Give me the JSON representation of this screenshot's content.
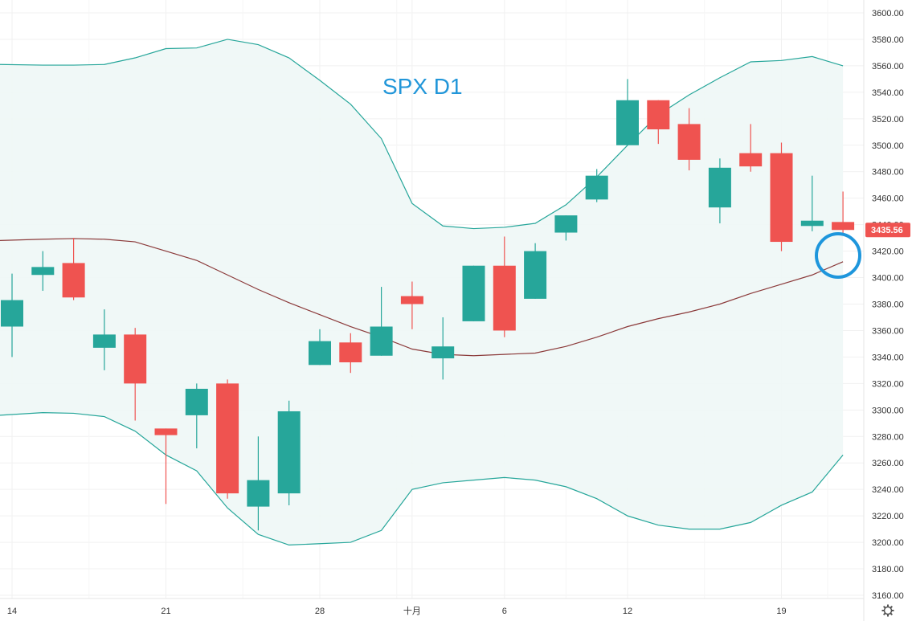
{
  "chart_data": {
    "type": "candlestick",
    "title": "SPX D1",
    "x_axis": {
      "labels": [
        {
          "text": "14",
          "index": 0
        },
        {
          "text": "21",
          "index": 5
        },
        {
          "text": "28",
          "index": 10
        },
        {
          "text": "十月",
          "index": 13
        },
        {
          "text": "6",
          "index": 16
        },
        {
          "text": "12",
          "index": 20
        },
        {
          "text": "19",
          "index": 25
        }
      ]
    },
    "y_axis": {
      "min": 3160,
      "max": 3600,
      "step": 20,
      "tick_labels": [
        "3600.00",
        "3580.00",
        "3560.00",
        "3540.00",
        "3520.00",
        "3500.00",
        "3480.00",
        "3460.00",
        "3440.00",
        "3420.00",
        "3400.00",
        "3380.00",
        "3360.00",
        "3340.00",
        "3320.00",
        "3300.00",
        "3280.00",
        "3260.00",
        "3240.00",
        "3220.00",
        "3200.00",
        "3180.00",
        "3160.00"
      ]
    },
    "last_price_label": "3435.56",
    "colors": {
      "up": "#26a69a",
      "down": "#ef5350",
      "middle_band": "#8b3a3a",
      "outer_band": "#26a69a",
      "band_fill": "#eef7f6",
      "highlight_circle": "#1e96dc",
      "title": "#2196d9"
    },
    "candles": [
      {
        "open": 3363,
        "high": 3403,
        "low": 3340,
        "close": 3383
      },
      {
        "open": 3402,
        "high": 3420,
        "low": 3390,
        "close": 3408
      },
      {
        "open": 3411,
        "high": 3430,
        "low": 3383,
        "close": 3385
      },
      {
        "open": 3347,
        "high": 3376,
        "low": 3330,
        "close": 3357
      },
      {
        "open": 3357,
        "high": 3362,
        "low": 3292,
        "close": 3320
      },
      {
        "open": 3286,
        "high": 3286,
        "low": 3229,
        "close": 3281
      },
      {
        "open": 3296,
        "high": 3320,
        "low": 3271,
        "close": 3316
      },
      {
        "open": 3320,
        "high": 3323,
        "low": 3233,
        "close": 3237
      },
      {
        "open": 3227,
        "high": 3280,
        "low": 3209,
        "close": 3247
      },
      {
        "open": 3237,
        "high": 3307,
        "low": 3228,
        "close": 3299
      },
      {
        "open": 3334,
        "high": 3361,
        "low": 3334,
        "close": 3352
      },
      {
        "open": 3351,
        "high": 3358,
        "low": 3328,
        "close": 3336
      },
      {
        "open": 3341,
        "high": 3393,
        "low": 3341,
        "close": 3363
      },
      {
        "open": 3386,
        "high": 3397,
        "low": 3361,
        "close": 3380
      },
      {
        "open": 3339,
        "high": 3370,
        "low": 3323,
        "close": 3348
      },
      {
        "open": 3367,
        "high": 3409,
        "low": 3367,
        "close": 3409
      },
      {
        "open": 3409,
        "high": 3431,
        "low": 3355,
        "close": 3360
      },
      {
        "open": 3384,
        "high": 3426,
        "low": 3384,
        "close": 3420
      },
      {
        "open": 3434,
        "high": 3447,
        "low": 3428,
        "close": 3447
      },
      {
        "open": 3459,
        "high": 3482,
        "low": 3457,
        "close": 3477
      },
      {
        "open": 3500,
        "high": 3550,
        "low": 3500,
        "close": 3534
      },
      {
        "open": 3534,
        "high": 3534,
        "low": 3501,
        "close": 3512
      },
      {
        "open": 3516,
        "high": 3528,
        "low": 3481,
        "close": 3489
      },
      {
        "open": 3453,
        "high": 3490,
        "low": 3441,
        "close": 3483
      },
      {
        "open": 3494,
        "high": 3516,
        "low": 3480,
        "close": 3484
      },
      {
        "open": 3494,
        "high": 3502,
        "low": 3420,
        "close": 3427
      },
      {
        "open": 3439,
        "high": 3477,
        "low": 3435,
        "close": 3443
      },
      {
        "open": 3442,
        "high": 3465,
        "low": 3432,
        "close": 3436
      }
    ],
    "bands": {
      "upper": [
        3561,
        3560.5,
        3560.5,
        3561,
        3566,
        3573,
        3573.5,
        3580,
        3576,
        3566,
        3549,
        3531,
        3505,
        3456,
        3439,
        3437,
        3438,
        3441,
        3455,
        3476,
        3500,
        3523,
        3538,
        3551,
        3563,
        3564,
        3567,
        3560
      ],
      "middle": [
        3428,
        3429,
        3429.5,
        3429,
        3427,
        3420,
        3413,
        3402,
        3391,
        3381,
        3372,
        3363,
        3355,
        3346,
        3342,
        3341,
        3342,
        3343,
        3348,
        3355,
        3363,
        3369,
        3374,
        3380,
        3388,
        3395,
        3402,
        3412
      ],
      "lower": [
        3296,
        3298,
        3297.5,
        3295,
        3284,
        3266,
        3254,
        3226,
        3206,
        3198,
        3199,
        3200,
        3209,
        3240,
        3245,
        3247,
        3249,
        3247,
        3242,
        3233,
        3220,
        3213,
        3210,
        3210,
        3215,
        3228,
        3238,
        3266
      ]
    }
  }
}
